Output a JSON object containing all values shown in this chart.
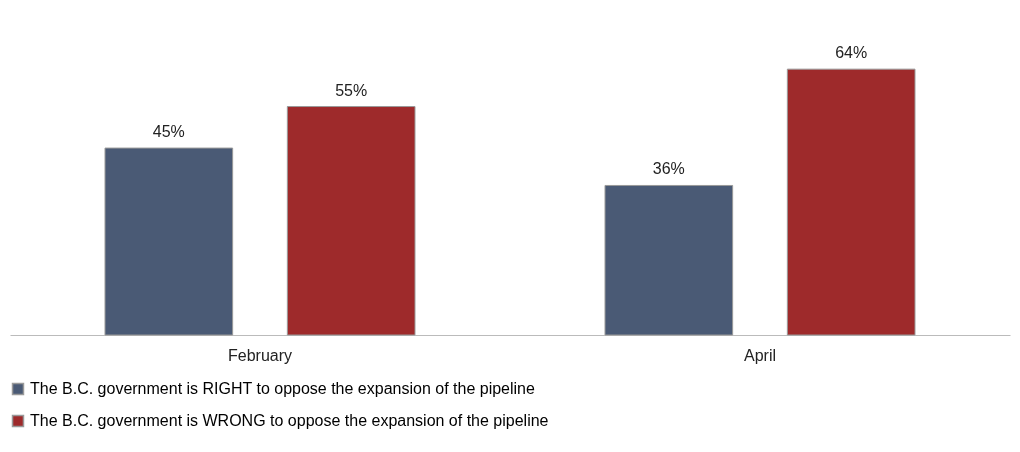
{
  "chart_data": {
    "type": "bar",
    "categories": [
      "February",
      "April"
    ],
    "series": [
      {
        "name": "The B.C. government is RIGHT to oppose the expansion of the pipeline",
        "color": "#4a5a75",
        "values": [
          45,
          36
        ],
        "value_labels": [
          "45%",
          "36%"
        ]
      },
      {
        "name": "The B.C. government is WRONG to oppose the expansion of the pipeline",
        "color": "#9e2a2b",
        "values": [
          55,
          64
        ],
        "value_labels": [
          "55%",
          "64%"
        ]
      }
    ],
    "legend": "bottom"
  }
}
